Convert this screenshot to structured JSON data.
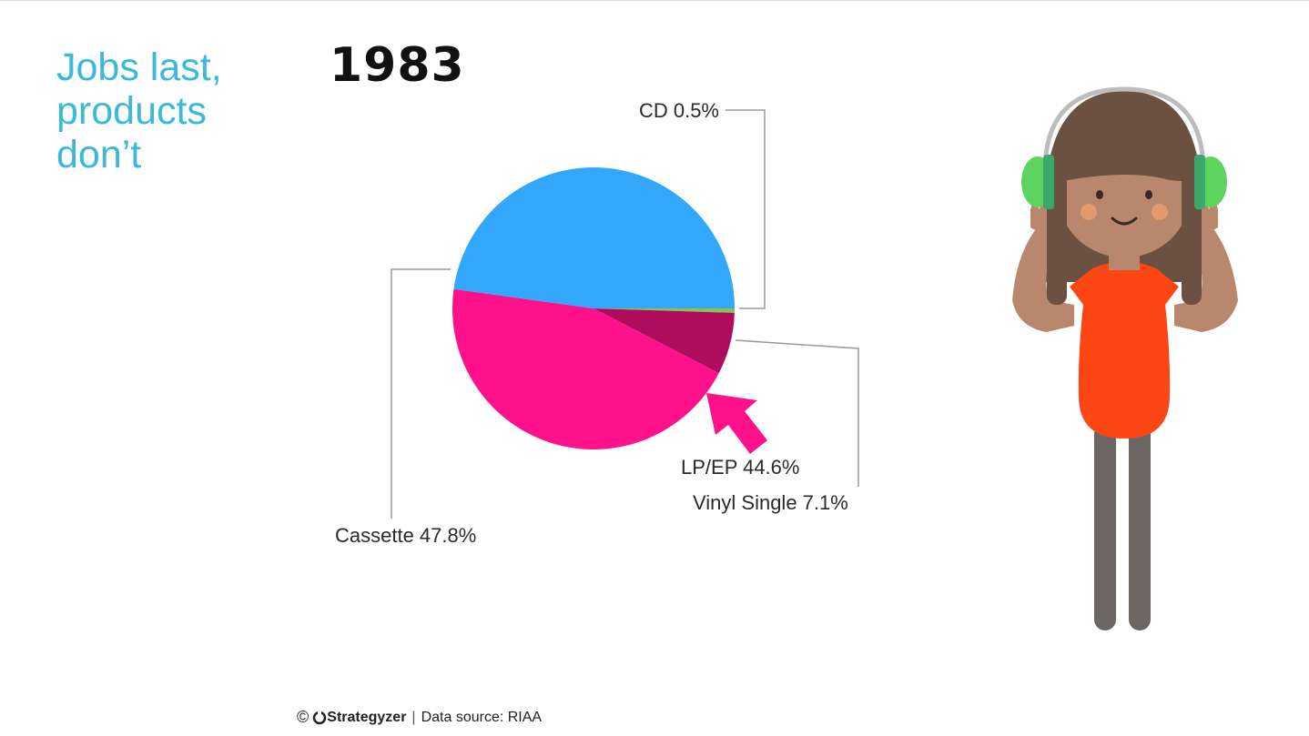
{
  "headline": {
    "line1": "Jobs last,",
    "line2": "products",
    "line3": "don’t"
  },
  "year": "1983",
  "chart_data": {
    "type": "pie",
    "title": "1983",
    "slices": [
      {
        "label": "CD",
        "value": 0.5,
        "display": "CD 0.5%",
        "color": "#8bc34a"
      },
      {
        "label": "Vinyl Single",
        "value": 7.1,
        "display": "Vinyl Single 7.1%",
        "color": "#b00c5e"
      },
      {
        "label": "LP/EP",
        "value": 44.6,
        "display": "LP/EP 44.6%",
        "color": "#ff118c"
      },
      {
        "label": "Cassette",
        "value": 47.8,
        "display": "Cassette  47.8%",
        "color": "#32a7fb"
      }
    ],
    "highlight": "LP/EP"
  },
  "footer": {
    "copyright": "©",
    "brand": "Strategyzer",
    "separator": "|",
    "source": "Data source: RIAA"
  },
  "colors": {
    "headline": "#3cb8d8",
    "arrow": "#ff118c",
    "shirt": "#fc4614",
    "headphones": "#5fd35f"
  }
}
